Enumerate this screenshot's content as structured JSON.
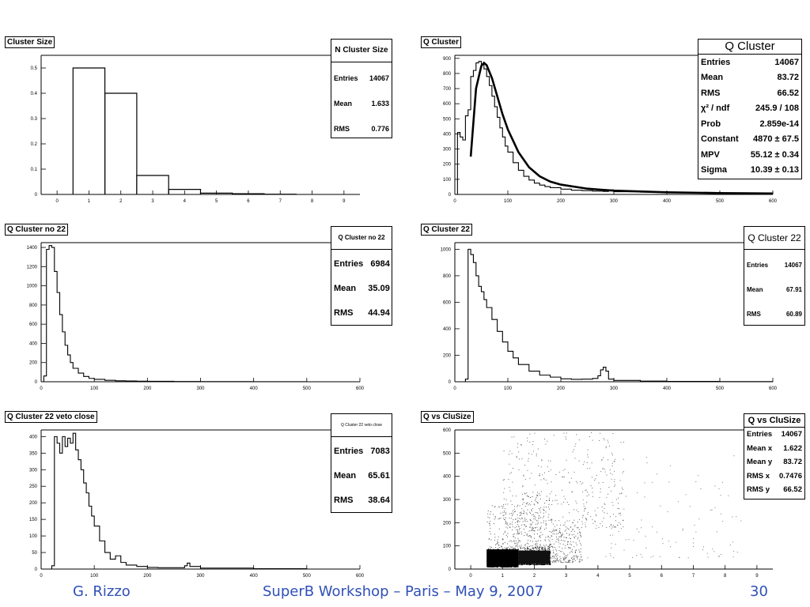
{
  "footer": {
    "left": "G. Rizzo",
    "center": "SuperB Workshop – Paris – May 9, 2007",
    "right": "30"
  },
  "chart_data": [
    {
      "id": "p1",
      "type": "bar",
      "title": "Cluster Size",
      "xlim": [
        -0.5,
        9.5
      ],
      "ylim": [
        0,
        0.55
      ],
      "xticks": [
        0,
        1,
        2,
        3,
        4,
        5,
        6,
        7,
        8,
        9
      ],
      "yticks": [
        0,
        0.1,
        0.2,
        0.3,
        0.4,
        0.5
      ],
      "bins": [
        {
          "x0": 0.5,
          "x1": 1.5,
          "y": 0.5
        },
        {
          "x0": 1.5,
          "x1": 2.5,
          "y": 0.4
        },
        {
          "x0": 2.5,
          "x1": 3.5,
          "y": 0.075
        },
        {
          "x0": 3.5,
          "x1": 4.5,
          "y": 0.02
        },
        {
          "x0": 4.5,
          "x1": 5.5,
          "y": 0.005
        },
        {
          "x0": 5.5,
          "x1": 6.5,
          "y": 0.003
        },
        {
          "x0": 6.5,
          "x1": 7.5,
          "y": 0.001
        }
      ],
      "stats": {
        "title": "N Cluster Size",
        "rows": [
          [
            "Entries",
            "14067"
          ],
          [
            "Mean",
            "1.633"
          ],
          [
            "RMS",
            "0.776"
          ]
        ]
      }
    },
    {
      "id": "p2",
      "type": "line",
      "title": "Q Cluster",
      "xlim": [
        0,
        600
      ],
      "ylim": [
        0,
        920
      ],
      "xticks": [
        0,
        100,
        200,
        300,
        400,
        500,
        600
      ],
      "yticks": [
        0,
        100,
        200,
        300,
        400,
        500,
        600,
        700,
        800,
        900
      ],
      "x": [
        0,
        5,
        10,
        15,
        20,
        25,
        30,
        35,
        40,
        45,
        50,
        55,
        60,
        65,
        70,
        75,
        80,
        85,
        90,
        95,
        100,
        110,
        120,
        130,
        140,
        150,
        160,
        170,
        180,
        200,
        220,
        240,
        260,
        280,
        290,
        300,
        350,
        400,
        450,
        500,
        550,
        600
      ],
      "values": [
        0,
        410,
        380,
        360,
        520,
        560,
        780,
        820,
        870,
        880,
        860,
        830,
        780,
        720,
        650,
        580,
        510,
        440,
        380,
        320,
        280,
        210,
        160,
        120,
        95,
        75,
        62,
        52,
        45,
        35,
        28,
        25,
        22,
        20,
        30,
        18,
        15,
        12,
        10,
        8,
        6,
        5
      ],
      "fit": {
        "x": [
          30,
          40,
          50,
          55,
          60,
          70,
          80,
          90,
          100,
          120,
          140,
          160,
          180,
          200,
          250,
          300,
          400,
          500,
          600
        ],
        "y": [
          250,
          700,
          850,
          870,
          855,
          770,
          650,
          530,
          430,
          280,
          180,
          120,
          85,
          65,
          38,
          25,
          14,
          9,
          6
        ]
      },
      "stats": {
        "title": "Q Cluster",
        "rows": [
          [
            "Entries",
            "14067"
          ],
          [
            "Mean",
            "83.72"
          ],
          [
            "RMS",
            "66.52"
          ],
          [
            "χ² / ndf",
            "245.9 / 108"
          ],
          [
            "Prob",
            "2.859e-14"
          ],
          [
            "Constant",
            "4870 ± 67.5"
          ],
          [
            "MPV",
            "55.12 ± 0.34"
          ],
          [
            "Sigma",
            "10.39 ± 0.13"
          ]
        ]
      }
    },
    {
      "id": "p3",
      "type": "line",
      "title": "Q Cluster no 22",
      "xlim": [
        0,
        600
      ],
      "ylim": [
        0,
        1450
      ],
      "xticks": [
        0,
        100,
        200,
        300,
        400,
        500,
        600
      ],
      "yticks": [
        0,
        200,
        400,
        600,
        800,
        1000,
        1200,
        1400
      ],
      "x": [
        0,
        5,
        10,
        15,
        20,
        25,
        30,
        35,
        40,
        45,
        50,
        55,
        60,
        70,
        80,
        90,
        100,
        120,
        140,
        160,
        180,
        200,
        250,
        300,
        400,
        500,
        600
      ],
      "values": [
        0,
        60,
        1380,
        1420,
        1400,
        1150,
        930,
        700,
        520,
        380,
        280,
        200,
        140,
        90,
        55,
        35,
        25,
        15,
        10,
        8,
        6,
        5,
        3,
        2,
        1,
        0,
        0
      ],
      "stats": {
        "title": "Q Cluster no 22",
        "rows": [
          [
            "Entries",
            "6984"
          ],
          [
            "Mean",
            "35.09"
          ],
          [
            "RMS",
            "44.94"
          ]
        ]
      }
    },
    {
      "id": "p4",
      "type": "line",
      "title": "Q Cluster 22",
      "xlim": [
        0,
        600
      ],
      "ylim": [
        0,
        1050
      ],
      "xticks": [
        0,
        100,
        200,
        300,
        400,
        500,
        600
      ],
      "yticks": [
        0,
        200,
        400,
        600,
        800,
        1000
      ],
      "x": [
        0,
        20,
        25,
        30,
        35,
        40,
        45,
        50,
        55,
        60,
        70,
        80,
        90,
        100,
        110,
        120,
        140,
        160,
        180,
        200,
        220,
        240,
        260,
        270,
        275,
        280,
        285,
        290,
        300,
        350,
        400,
        500,
        600
      ],
      "values": [
        0,
        20,
        1000,
        960,
        900,
        800,
        720,
        680,
        620,
        560,
        470,
        380,
        300,
        230,
        180,
        130,
        80,
        50,
        35,
        22,
        18,
        20,
        25,
        45,
        90,
        110,
        80,
        20,
        10,
        5,
        3,
        1,
        0
      ],
      "stats": {
        "title": "Q Cluster 22",
        "rows": [
          [
            "Entries",
            "14067"
          ],
          [
            "Mean",
            "67.91"
          ],
          [
            "RMS",
            "60.89"
          ]
        ]
      }
    },
    {
      "id": "p5",
      "type": "line",
      "title": "Q Cluster 22 veto close",
      "xlim": [
        0,
        600
      ],
      "ylim": [
        0,
        420
      ],
      "xticks": [
        0,
        100,
        200,
        300,
        400,
        500,
        600
      ],
      "yticks": [
        0,
        50,
        100,
        150,
        200,
        250,
        300,
        350,
        400
      ],
      "x": [
        0,
        20,
        25,
        30,
        35,
        40,
        45,
        50,
        55,
        60,
        65,
        70,
        75,
        80,
        85,
        90,
        95,
        100,
        110,
        120,
        130,
        140,
        150,
        160,
        180,
        200,
        220,
        250,
        270,
        275,
        280,
        300,
        400,
        500,
        600
      ],
      "values": [
        0,
        10,
        400,
        380,
        350,
        400,
        370,
        395,
        380,
        410,
        360,
        330,
        300,
        260,
        230,
        190,
        160,
        130,
        85,
        50,
        30,
        40,
        20,
        12,
        8,
        5,
        4,
        4,
        10,
        18,
        8,
        3,
        1,
        0,
        0
      ],
      "stats": {
        "title": "Q Cluster 22 veto close",
        "rows": [
          [
            "Entries",
            "7083"
          ],
          [
            "Mean",
            "65.61"
          ],
          [
            "RMS",
            "38.64"
          ]
        ]
      }
    },
    {
      "id": "p6",
      "type": "scatter",
      "title": "Q vs CluSize",
      "xlim": [
        -0.5,
        9.5
      ],
      "ylim": [
        0,
        600
      ],
      "xticks": [
        0,
        1,
        2,
        3,
        4,
        5,
        6,
        7,
        8,
        9
      ],
      "yticks": [
        0,
        100,
        200,
        300,
        400,
        500,
        600
      ],
      "stats": {
        "title": "Q vs CluSize",
        "rows": [
          [
            "Entries",
            "14067"
          ],
          [
            "Mean x",
            "1.622"
          ],
          [
            "Mean y",
            "83.72"
          ],
          [
            "RMS x",
            "0.7476"
          ],
          [
            "RMS y",
            "66.52"
          ]
        ]
      }
    }
  ]
}
